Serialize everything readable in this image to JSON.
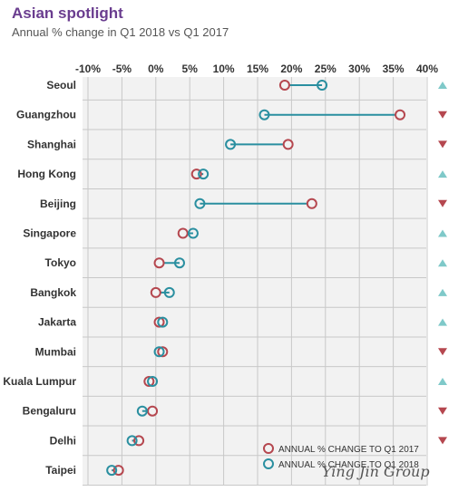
{
  "title": "Asian spotlight",
  "subtitle": "Annual % change in Q1 2018 vs Q1 2017",
  "watermark": "Ying Jin Group",
  "colors": {
    "q1_2017": "#b5474f",
    "q1_2018": "#2a8fa0",
    "up": "#7fc9c9",
    "down": "#b5474f",
    "panel": "#f2f2f2",
    "grid": "#c8c8c8"
  },
  "chart_data": {
    "type": "dumbbell",
    "title": "Asian spotlight",
    "subtitle": "Annual % change in Q1 2018 vs Q1 2017",
    "xlim": [
      -10,
      40
    ],
    "x_ticks": [
      "-10%",
      "-5%",
      "0%",
      "5%",
      "10%",
      "15%",
      "20%",
      "25%",
      "30%",
      "35%",
      "40%"
    ],
    "grid": true,
    "legend_position": "bottom-right",
    "categories": [
      "Seoul",
      "Guangzhou",
      "Shanghai",
      "Hong Kong",
      "Beijing",
      "Singapore",
      "Tokyo",
      "Bangkok",
      "Jakarta",
      "Mumbai",
      "Kuala Lumpur",
      "Bengaluru",
      "Delhi",
      "Taipei"
    ],
    "series": [
      {
        "name": "ANNUAL % CHANGE TO Q1 2017",
        "color": "#b5474f",
        "values": [
          19,
          36,
          19.5,
          6,
          23,
          4,
          0.5,
          0,
          0.5,
          1,
          -1,
          -0.5,
          -2.5,
          -5.5
        ]
      },
      {
        "name": "ANNUAL % CHANGE TO Q1 2018",
        "color": "#2a8fa0",
        "values": [
          24.5,
          16,
          11,
          7,
          6.5,
          5.5,
          3.5,
          2,
          1,
          0.5,
          -0.5,
          -2,
          -3.5,
          -6.5
        ]
      }
    ],
    "trend": [
      "up",
      "down",
      "down",
      "up",
      "down",
      "up",
      "up",
      "up",
      "up",
      "down",
      "up",
      "down",
      "down",
      ""
    ]
  }
}
